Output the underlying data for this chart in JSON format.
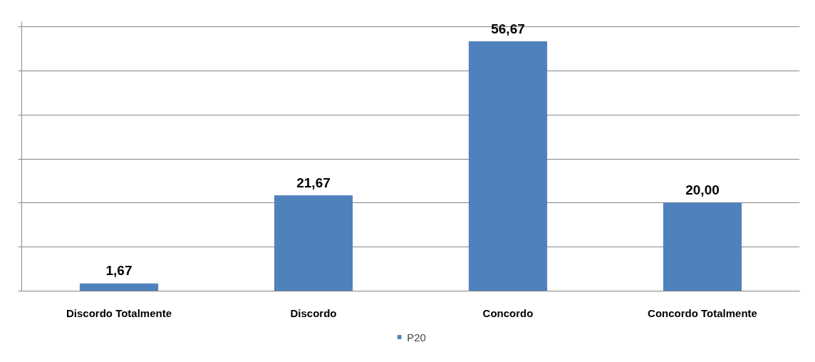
{
  "chart_data": {
    "type": "bar",
    "categories": [
      "Discordo Totalmente",
      "Discordo",
      "Concordo",
      "Concordo Totalmente"
    ],
    "series": [
      {
        "name": "P20",
        "color": "#4f81bd",
        "values": [
          1.67,
          21.67,
          56.67,
          20.0
        ],
        "value_labels": [
          "1,67",
          "21,67",
          "56,67",
          "20,00"
        ]
      }
    ],
    "grid": "y",
    "legend": "bottom",
    "tick_labels": "x"
  }
}
